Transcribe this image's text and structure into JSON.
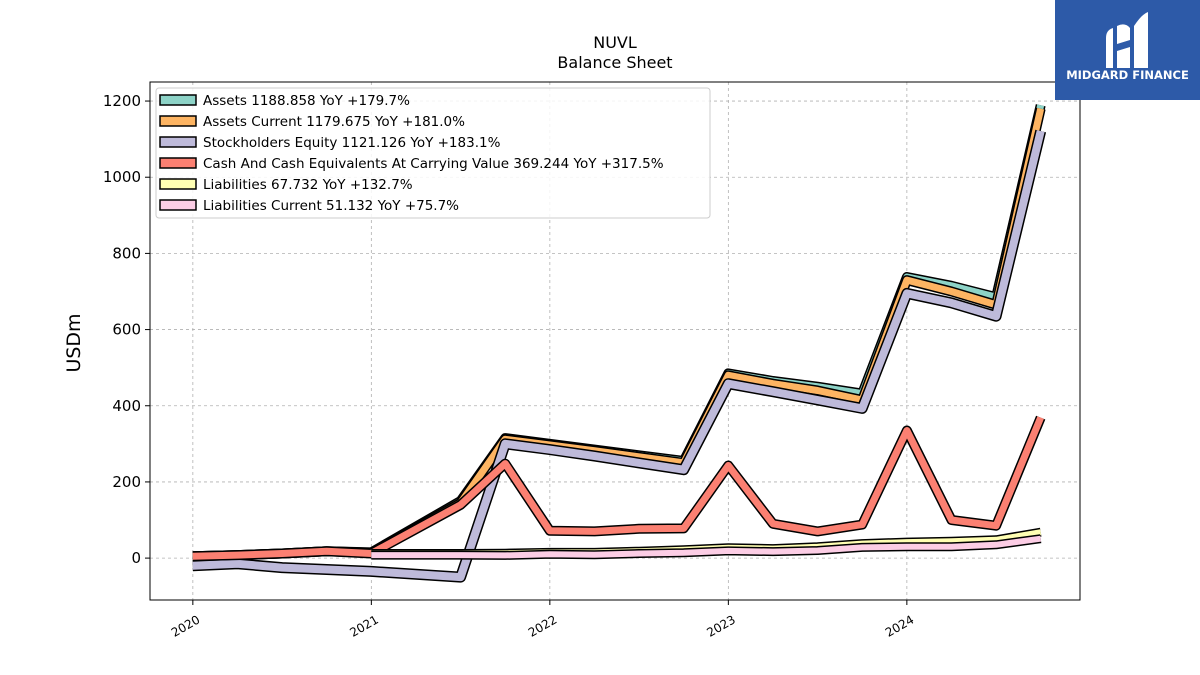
{
  "logo": {
    "text": "MIDGARD FINANCE",
    "bg": "#2d5aa8"
  },
  "chart_data": {
    "type": "line",
    "title": "NUVL",
    "subtitle": "Balance  Sheet",
    "ylabel": "USDm",
    "xlabel": "",
    "xlim": [
      2019.76,
      2024.97
    ],
    "ylim": [
      -110,
      1250
    ],
    "yticks": [
      0,
      200,
      400,
      600,
      800,
      1000,
      1200
    ],
    "xticks": [
      "2020",
      "2021",
      "2022",
      "2023",
      "2024"
    ],
    "grid": true,
    "legend_position": "top-left",
    "series": [
      {
        "name": "Assets",
        "legend": "Assets  1188.858 YoY +179.7%",
        "color": "#8dd3c7",
        "x": [
          2020.0,
          2020.25,
          2020.5,
          2020.75,
          2021.0,
          2021.5,
          2021.75,
          2022.0,
          2022.25,
          2022.5,
          2022.75,
          2023.0,
          2023.25,
          2023.5,
          2023.75,
          2024.0,
          2024.25,
          2024.5,
          2024.75
        ],
        "y": [
          5,
          8,
          12,
          18,
          15,
          150,
          315,
          300,
          285,
          270,
          255,
          485,
          465,
          450,
          432,
          738,
          715,
          685,
          1189
        ]
      },
      {
        "name": "Assets Current",
        "legend": "Assets Current  1179.675 YoY +181.0%",
        "color": "#fdb462",
        "x": [
          2020.0,
          2020.25,
          2020.5,
          2020.75,
          2021.0,
          2021.5,
          2021.75,
          2022.0,
          2022.25,
          2022.5,
          2022.75,
          2023.0,
          2023.25,
          2023.5,
          2023.75,
          2024.0,
          2024.25,
          2024.5,
          2024.75
        ],
        "y": [
          5,
          8,
          12,
          18,
          14,
          145,
          312,
          297,
          282,
          266,
          250,
          480,
          458,
          440,
          415,
          730,
          700,
          665,
          1180
        ]
      },
      {
        "name": "Stockholders Equity",
        "legend": "Stockholders Equity  1121.126 YoY +183.1%",
        "color": "#bebada",
        "x": [
          2020.0,
          2020.25,
          2020.5,
          2020.75,
          2021.0,
          2021.5,
          2021.75,
          2022.0,
          2022.25,
          2022.5,
          2022.75,
          2023.0,
          2023.25,
          2023.5,
          2023.75,
          2024.0,
          2024.25,
          2024.5,
          2024.75
        ],
        "y": [
          -20,
          -15,
          -25,
          -30,
          -35,
          -50,
          300,
          285,
          268,
          250,
          232,
          458,
          437,
          415,
          393,
          695,
          670,
          635,
          1121
        ]
      },
      {
        "name": "Cash And Cash Equivalents At Carrying Value",
        "legend": "Cash And Cash Equivalents At Carrying Value  369.244 YoY +317.5%",
        "color": "#fb8072",
        "x": [
          2020.0,
          2020.25,
          2020.5,
          2020.75,
          2021.0,
          2021.5,
          2021.75,
          2022.0,
          2022.25,
          2022.5,
          2022.75,
          2023.0,
          2023.25,
          2023.5,
          2023.75,
          2024.0,
          2024.25,
          2024.5,
          2024.75
        ],
        "y": [
          5,
          8,
          12,
          18,
          12,
          140,
          248,
          72,
          70,
          77,
          78,
          243,
          90,
          70,
          88,
          335,
          100,
          85,
          369
        ]
      },
      {
        "name": "Liabilities",
        "legend": "Liabilities  67.732 YoY +132.7%",
        "color": "#ffffb3",
        "x": [
          2021.0,
          2021.5,
          2021.75,
          2022.0,
          2022.25,
          2022.5,
          2022.75,
          2023.0,
          2023.25,
          2023.5,
          2023.75,
          2024.0,
          2024.25,
          2024.5,
          2024.75
        ],
        "y": [
          12,
          12,
          13,
          15,
          15,
          18,
          22,
          27,
          25,
          30,
          38,
          42,
          44,
          48,
          68
        ]
      },
      {
        "name": "Liabilities Current",
        "legend": "Liabilities Current  51.132 YoY +75.7%",
        "color": "#fccde5",
        "x": [
          2021.0,
          2021.5,
          2021.75,
          2022.0,
          2022.25,
          2022.5,
          2022.75,
          2023.0,
          2023.25,
          2023.5,
          2023.75,
          2024.0,
          2024.25,
          2024.5,
          2024.75
        ],
        "y": [
          8,
          8,
          7,
          10,
          9,
          12,
          14,
          19,
          17,
          20,
          28,
          30,
          30,
          35,
          51
        ]
      }
    ]
  }
}
